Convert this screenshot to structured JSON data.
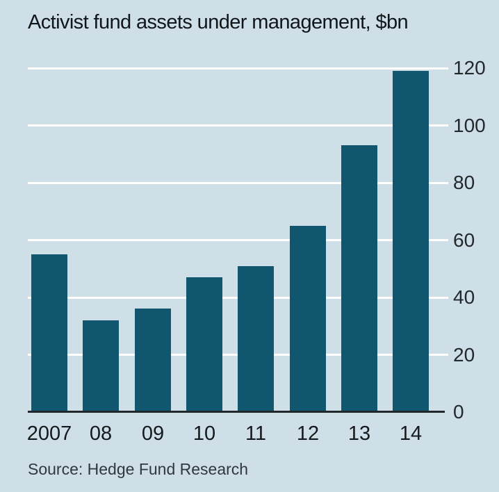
{
  "source_note": "Source: Hedge Fund Research",
  "colors": {
    "background": "#cfdfe7",
    "bar": "#0f566e",
    "gridline": "#ffffff",
    "axis_line": "#20272b",
    "title_text": "#10161a",
    "tick_text": "#22282c",
    "source_text": "#31383d"
  },
  "chart_data": {
    "type": "bar",
    "title": "Activist fund assets under management, $bn",
    "categories": [
      "2007",
      "08",
      "09",
      "10",
      "11",
      "12",
      "13",
      "14"
    ],
    "values": [
      55,
      32,
      36,
      47,
      51,
      65,
      93,
      119
    ],
    "xlabel": "",
    "ylabel": "$bn",
    "ylim": [
      0,
      120
    ],
    "yticks": [
      0,
      20,
      40,
      60,
      80,
      100,
      120
    ],
    "ytick_side": "right",
    "grid": true,
    "legend": false
  }
}
